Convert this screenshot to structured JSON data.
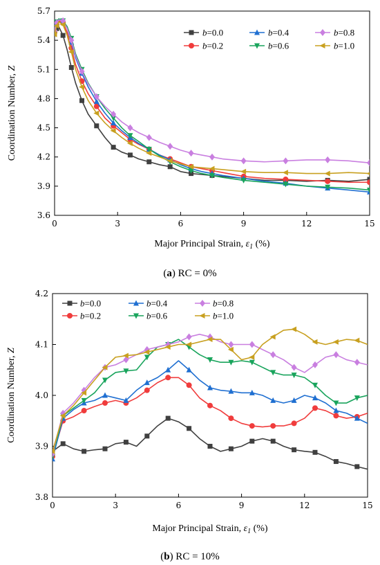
{
  "chart_data": [
    {
      "type": "line",
      "caption_letter": "a",
      "caption_text": " RC = 0%",
      "xlabel": "Major Principal Strain, ",
      "xlabel_symbol": "ε",
      "xlabel_sub": "1",
      "xlabel_unit": " (%)",
      "ylabel": "Coordination Number, ",
      "ylabel_symbol": "Z",
      "xlim": [
        0,
        15
      ],
      "ylim": [
        3.6,
        5.7
      ],
      "xticks": [
        0,
        3,
        6,
        9,
        12,
        15
      ],
      "yticks": [
        3.6,
        3.9,
        4.2,
        4.5,
        4.8,
        5.1,
        5.4,
        5.7
      ],
      "ytick_decimals": 1,
      "legend_position": "top-right",
      "grid": false,
      "series": [
        {
          "name": "b=0.0",
          "color": "#404040",
          "marker": "square",
          "x": [
            0,
            0.1,
            0.2,
            0.4,
            0.6,
            0.8,
            1.0,
            1.3,
            1.6,
            2.0,
            2.4,
            2.8,
            3.2,
            3.6,
            4.0,
            4.5,
            5.0,
            5.5,
            6.0,
            6.5,
            7.0,
            7.5,
            8.0,
            9.0,
            10.0,
            11.0,
            12.0,
            13.0,
            14.0,
            15.0
          ],
          "y": [
            5.47,
            5.52,
            5.54,
            5.45,
            5.3,
            5.12,
            4.96,
            4.78,
            4.64,
            4.52,
            4.4,
            4.3,
            4.25,
            4.22,
            4.18,
            4.15,
            4.12,
            4.1,
            4.05,
            4.03,
            4.02,
            4.01,
            4.0,
            3.98,
            3.96,
            3.96,
            3.95,
            3.96,
            3.95,
            3.97
          ]
        },
        {
          "name": "b=0.2",
          "color": "#f03c3c",
          "marker": "circle",
          "x": [
            0,
            0.1,
            0.2,
            0.4,
            0.6,
            0.8,
            1.0,
            1.3,
            1.6,
            2.0,
            2.4,
            2.8,
            3.2,
            3.6,
            4.0,
            4.5,
            5.0,
            5.5,
            6.0,
            6.5,
            7.0,
            7.5,
            8.0,
            9.0,
            10.0,
            11.0,
            12.0,
            13.0,
            14.0,
            15.0
          ],
          "y": [
            5.48,
            5.56,
            5.6,
            5.58,
            5.48,
            5.32,
            5.15,
            4.98,
            4.85,
            4.72,
            4.6,
            4.52,
            4.45,
            4.38,
            4.33,
            4.28,
            4.22,
            4.18,
            4.14,
            4.1,
            4.08,
            4.06,
            4.04,
            4.0,
            3.98,
            3.97,
            3.96,
            3.95,
            3.94,
            3.94
          ]
        },
        {
          "name": "b=0.4",
          "color": "#1f6fd1",
          "marker": "triangle-up",
          "x": [
            0,
            0.1,
            0.2,
            0.4,
            0.6,
            0.8,
            1.0,
            1.3,
            1.6,
            2.0,
            2.4,
            2.8,
            3.2,
            3.6,
            4.0,
            4.5,
            5.0,
            5.5,
            6.0,
            6.5,
            7.0,
            7.5,
            8.0,
            9.0,
            10.0,
            11.0,
            12.0,
            13.0,
            14.0,
            15.0
          ],
          "y": [
            5.5,
            5.58,
            5.61,
            5.6,
            5.52,
            5.38,
            5.22,
            5.06,
            4.92,
            4.77,
            4.65,
            4.55,
            4.47,
            4.4,
            4.34,
            4.28,
            4.22,
            4.17,
            4.12,
            4.08,
            4.05,
            4.03,
            4.01,
            3.98,
            3.95,
            3.93,
            3.9,
            3.88,
            3.86,
            3.84
          ]
        },
        {
          "name": "b=0.6",
          "color": "#19a45c",
          "marker": "triangle-down",
          "x": [
            0,
            0.1,
            0.2,
            0.4,
            0.6,
            0.8,
            1.0,
            1.3,
            1.6,
            2.0,
            2.4,
            2.8,
            3.2,
            3.6,
            4.0,
            4.5,
            5.0,
            5.5,
            6.0,
            6.5,
            7.0,
            7.5,
            8.0,
            9.0,
            10.0,
            11.0,
            12.0,
            13.0,
            14.0,
            15.0
          ],
          "y": [
            5.52,
            5.59,
            5.62,
            5.6,
            5.54,
            5.42,
            5.26,
            5.1,
            4.96,
            4.82,
            4.7,
            4.6,
            4.5,
            4.42,
            4.36,
            4.28,
            4.21,
            4.15,
            4.1,
            4.06,
            4.03,
            4.01,
            3.99,
            3.96,
            3.94,
            3.92,
            3.9,
            3.89,
            3.88,
            3.86
          ]
        },
        {
          "name": "b=0.8",
          "color": "#c97fe0",
          "marker": "diamond",
          "x": [
            0,
            0.1,
            0.2,
            0.4,
            0.6,
            0.8,
            1.0,
            1.3,
            1.6,
            2.0,
            2.4,
            2.8,
            3.2,
            3.6,
            4.0,
            4.5,
            5.0,
            5.5,
            6.0,
            6.5,
            7.0,
            7.5,
            8.0,
            9.0,
            10.0,
            11.0,
            12.0,
            13.0,
            14.0,
            15.0
          ],
          "y": [
            5.5,
            5.58,
            5.61,
            5.6,
            5.52,
            5.4,
            5.24,
            5.08,
            4.95,
            4.82,
            4.72,
            4.64,
            4.56,
            4.5,
            4.45,
            4.4,
            4.35,
            4.31,
            4.27,
            4.24,
            4.22,
            4.2,
            4.18,
            4.16,
            4.15,
            4.16,
            4.17,
            4.17,
            4.16,
            4.14
          ]
        },
        {
          "name": "b=1.0",
          "color": "#c8a020",
          "marker": "triangle-left",
          "x": [
            0,
            0.1,
            0.2,
            0.4,
            0.6,
            0.8,
            1.0,
            1.3,
            1.6,
            2.0,
            2.4,
            2.8,
            3.2,
            3.6,
            4.0,
            4.5,
            5.0,
            5.5,
            6.0,
            6.5,
            7.0,
            7.5,
            8.0,
            9.0,
            10.0,
            11.0,
            12.0,
            13.0,
            14.0,
            15.0
          ],
          "y": [
            5.46,
            5.55,
            5.59,
            5.56,
            5.45,
            5.28,
            5.1,
            4.92,
            4.78,
            4.65,
            4.55,
            4.47,
            4.4,
            4.34,
            4.29,
            4.24,
            4.2,
            4.16,
            4.13,
            4.1,
            4.09,
            4.08,
            4.07,
            4.05,
            4.04,
            4.04,
            4.03,
            4.03,
            4.04,
            4.03
          ]
        }
      ]
    },
    {
      "type": "line",
      "caption_letter": "b",
      "caption_text": " RC = 10%",
      "xlabel": "Major Principal Strain, ",
      "xlabel_symbol": "ε",
      "xlabel_sub": "1",
      "xlabel_unit": " (%)",
      "ylabel": "Coordination Number, ",
      "ylabel_symbol": "Z",
      "xlim": [
        0,
        15
      ],
      "ylim": [
        3.8,
        4.2
      ],
      "xticks": [
        0,
        3,
        6,
        9,
        12,
        15
      ],
      "yticks": [
        3.8,
        3.9,
        4.0,
        4.1,
        4.2
      ],
      "ytick_decimals": 1,
      "legend_position": "top-left",
      "grid": false,
      "series": [
        {
          "name": "b=0.0",
          "color": "#404040",
          "marker": "square",
          "x": [
            0,
            0.5,
            1.0,
            1.5,
            2.0,
            2.5,
            3.0,
            3.5,
            4.0,
            4.5,
            5.0,
            5.5,
            6.0,
            6.5,
            7.0,
            7.5,
            8.0,
            8.5,
            9.0,
            9.5,
            10.0,
            10.5,
            11.0,
            11.5,
            12.0,
            12.5,
            13.0,
            13.5,
            14.0,
            14.5,
            15.0
          ],
          "y": [
            3.89,
            3.905,
            3.895,
            3.89,
            3.893,
            3.895,
            3.905,
            3.908,
            3.9,
            3.92,
            3.94,
            3.955,
            3.948,
            3.935,
            3.915,
            3.9,
            3.89,
            3.895,
            3.9,
            3.91,
            3.915,
            3.91,
            3.9,
            3.893,
            3.89,
            3.888,
            3.88,
            3.87,
            3.866,
            3.86,
            3.855
          ]
        },
        {
          "name": "b=0.2",
          "color": "#f03c3c",
          "marker": "circle",
          "x": [
            0,
            0.5,
            1.0,
            1.5,
            2.0,
            2.5,
            3.0,
            3.5,
            4.0,
            4.5,
            5.0,
            5.5,
            6.0,
            6.5,
            7.0,
            7.5,
            8.0,
            8.5,
            9.0,
            9.5,
            10.0,
            10.5,
            11.0,
            11.5,
            12.0,
            12.5,
            13.0,
            13.5,
            14.0,
            14.5,
            15.0
          ],
          "y": [
            3.88,
            3.95,
            3.958,
            3.97,
            3.978,
            3.985,
            3.99,
            3.985,
            3.995,
            4.01,
            4.025,
            4.035,
            4.035,
            4.02,
            3.995,
            3.98,
            3.97,
            3.955,
            3.945,
            3.94,
            3.938,
            3.94,
            3.94,
            3.945,
            3.955,
            3.975,
            3.97,
            3.96,
            3.955,
            3.958,
            3.965
          ]
        },
        {
          "name": "b=0.4",
          "color": "#1f6fd1",
          "marker": "triangle-up",
          "x": [
            0,
            0.5,
            1.0,
            1.5,
            2.0,
            2.5,
            3.0,
            3.5,
            4.0,
            4.5,
            5.0,
            5.5,
            6.0,
            6.5,
            7.0,
            7.5,
            8.0,
            8.5,
            9.0,
            9.5,
            10.0,
            10.5,
            11.0,
            11.5,
            12.0,
            12.5,
            13.0,
            13.5,
            14.0,
            14.5,
            15.0
          ],
          "y": [
            3.875,
            3.955,
            3.972,
            3.985,
            3.99,
            4.0,
            3.995,
            3.99,
            4.01,
            4.025,
            4.035,
            4.05,
            4.068,
            4.05,
            4.03,
            4.015,
            4.01,
            4.008,
            4.005,
            4.005,
            4.0,
            3.99,
            3.985,
            3.99,
            4.0,
            3.995,
            3.985,
            3.97,
            3.965,
            3.955,
            3.945
          ]
        },
        {
          "name": "b=0.6",
          "color": "#19a45c",
          "marker": "triangle-down",
          "x": [
            0,
            0.5,
            1.0,
            1.5,
            2.0,
            2.5,
            3.0,
            3.5,
            4.0,
            4.5,
            5.0,
            5.5,
            6.0,
            6.5,
            7.0,
            7.5,
            8.0,
            8.5,
            9.0,
            9.5,
            10.0,
            10.5,
            11.0,
            11.5,
            12.0,
            12.5,
            13.0,
            13.5,
            14.0,
            14.5,
            15.0
          ],
          "y": [
            3.88,
            3.96,
            3.975,
            3.99,
            4.005,
            4.03,
            4.045,
            4.048,
            4.05,
            4.075,
            4.095,
            4.1,
            4.11,
            4.095,
            4.08,
            4.07,
            4.065,
            4.065,
            4.068,
            4.065,
            4.055,
            4.045,
            4.04,
            4.04,
            4.035,
            4.02,
            4.0,
            3.985,
            3.985,
            3.995,
            4.0
          ]
        },
        {
          "name": "b=0.8",
          "color": "#c97fe0",
          "marker": "diamond",
          "x": [
            0,
            0.5,
            1.0,
            1.5,
            2.0,
            2.5,
            3.0,
            3.5,
            4.0,
            4.5,
            5.0,
            5.5,
            6.0,
            6.5,
            7.0,
            7.5,
            8.0,
            8.5,
            9.0,
            9.5,
            10.0,
            10.5,
            11.0,
            11.5,
            12.0,
            12.5,
            13.0,
            13.5,
            14.0,
            14.5,
            15.0
          ],
          "y": [
            3.885,
            3.965,
            3.985,
            4.01,
            4.035,
            4.055,
            4.06,
            4.07,
            4.08,
            4.09,
            4.095,
            4.1,
            4.105,
            4.115,
            4.12,
            4.115,
            4.105,
            4.1,
            4.1,
            4.1,
            4.09,
            4.08,
            4.07,
            4.055,
            4.045,
            4.06,
            4.075,
            4.08,
            4.07,
            4.065,
            4.06
          ]
        },
        {
          "name": "b=1.0",
          "color": "#c8a020",
          "marker": "triangle-left",
          "x": [
            0,
            0.5,
            1.0,
            1.5,
            2.0,
            2.5,
            3.0,
            3.5,
            4.0,
            4.5,
            5.0,
            5.5,
            6.0,
            6.5,
            7.0,
            7.5,
            8.0,
            8.5,
            9.0,
            9.5,
            10.0,
            10.5,
            11.0,
            11.5,
            12.0,
            12.5,
            13.0,
            13.5,
            14.0,
            14.5,
            15.0
          ],
          "y": [
            3.89,
            3.96,
            3.98,
            4.005,
            4.03,
            4.055,
            4.075,
            4.078,
            4.08,
            4.085,
            4.09,
            4.095,
            4.1,
            4.1,
            4.105,
            4.11,
            4.11,
            4.09,
            4.07,
            4.075,
            4.1,
            4.115,
            4.128,
            4.13,
            4.12,
            4.105,
            4.1,
            4.105,
            4.11,
            4.108,
            4.1
          ]
        }
      ]
    }
  ]
}
